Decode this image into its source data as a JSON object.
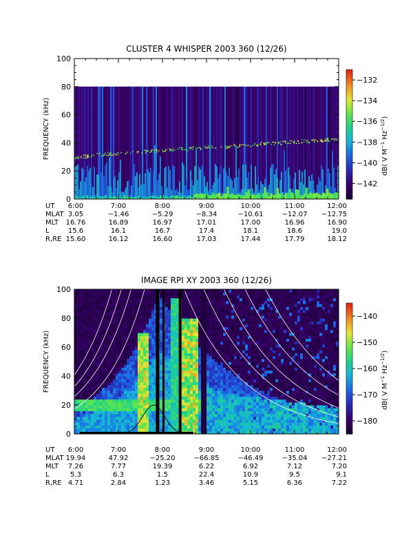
{
  "chart_data": [
    {
      "type": "heatmap",
      "title": "CLUSTER 4 WHISPER 2003 360 (12/26)",
      "ylabel": "FREQUENCY (kHz)",
      "ylim": [
        0,
        100
      ],
      "yticks": [
        "0",
        "20",
        "40",
        "60",
        "80",
        "100"
      ],
      "xticks": [
        "6:00",
        "7:00",
        "8:00",
        "9:00",
        "10:00",
        "11:00",
        "12:00"
      ],
      "data_top_khz": 80,
      "colorbar": {
        "label_parts": [
          "dB( V M",
          "−1",
          " Hz",
          "−1/2",
          ")"
        ],
        "ticks": [
          "−132",
          "−134",
          "−136",
          "−138",
          "−140",
          "−142"
        ],
        "tick_values": [
          -132,
          -134,
          -136,
          -138,
          -140,
          -142
        ],
        "range": [
          -143.5,
          -131
        ],
        "colors": [
          "#1a0033",
          "#3a006e",
          "#2828b4",
          "#1e64e6",
          "#14b4dc",
          "#1ed28c",
          "#64e646",
          "#e6e632",
          "#f08c1e",
          "#e62814"
        ]
      },
      "background_color": "#4a1a7a",
      "ephemeris": {
        "labels": [
          "UT",
          "MLAT",
          "MLT",
          "L",
          "R,RE"
        ],
        "rows": [
          [
            "6:00",
            "7:00",
            "8:00",
            "9:00",
            "10:00",
            "11:00",
            "12:00"
          ],
          [
            "3.05",
            "−1.46",
            "−5.29",
            "−8.34",
            "−10.61",
            "−12.07",
            "−12.75"
          ],
          [
            "16.76",
            "16.89",
            "16.97",
            "17.01",
            "17.00",
            "16.96",
            "16.90"
          ],
          [
            "15.6",
            "16.1",
            "16.7",
            "17.4",
            "18.1",
            "18.6",
            "19.0"
          ],
          [
            "15.60",
            "16.12",
            "16.60",
            "17.03",
            "17.44",
            "17.79",
            "18.12"
          ]
        ]
      },
      "plasma_line_khz": {
        "hours": [
          6,
          7,
          8,
          9,
          10,
          11,
          12
        ],
        "values": [
          30,
          33,
          35,
          37,
          39,
          41,
          43
        ]
      }
    },
    {
      "type": "heatmap",
      "title": "IMAGE RPI XY 2003 360 (12/26)",
      "ylabel": "FREQUENCY (kHz)",
      "ylim": [
        0,
        100
      ],
      "yticks": [
        "0",
        "20",
        "40",
        "60",
        "80",
        "100"
      ],
      "xticks": [
        "6:00",
        "7:00",
        "8:00",
        "9:00",
        "10:00",
        "11:00",
        "12:00"
      ],
      "colorbar": {
        "label_parts": [
          "dB( V M",
          "−1",
          " Hz",
          "−1/2",
          ")"
        ],
        "ticks": [
          "−140",
          "−150",
          "−160",
          "−170",
          "−180"
        ],
        "tick_values": [
          -140,
          -150,
          -160,
          -170,
          -180
        ],
        "range": [
          -185,
          -135
        ],
        "colors": [
          "#1a0033",
          "#3a006e",
          "#2828b4",
          "#1e64e6",
          "#14b4dc",
          "#1ed28c",
          "#64e646",
          "#e6e632",
          "#f08c1e",
          "#e62814"
        ]
      },
      "ephemeris": {
        "labels": [
          "UT",
          "MLAT",
          "MLT",
          "L",
          "R,RE"
        ],
        "rows": [
          [
            "6:00",
            "7:00",
            "8:00",
            "9:00",
            "10:00",
            "11:00",
            "12:00"
          ],
          [
            "19.94",
            "47.92",
            "−25.20",
            "−66.85",
            "−46.49",
            "−35.04",
            "−27.21"
          ],
          [
            "7.26",
            "7.77",
            "19.39",
            "6.22",
            "6.92",
            "7.12",
            "7.20"
          ],
          [
            "5.3",
            "6.3",
            "1.5",
            "22.4",
            "10.9",
            "9.5",
            "9.1"
          ],
          [
            "4.71",
            "2.84",
            "1.23",
            "3.46",
            "5.15",
            "6.36",
            "7.22"
          ]
        ]
      },
      "perigee_hour": 7.95
    }
  ]
}
